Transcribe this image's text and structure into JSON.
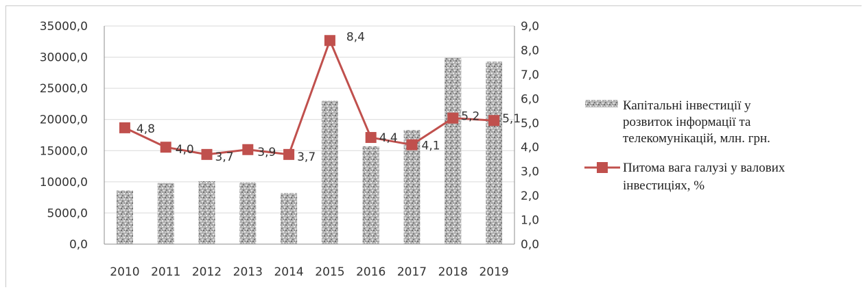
{
  "chart_data": {
    "type": "bar",
    "title": "",
    "xlabel": "",
    "ylabel": "",
    "categories": [
      "2010",
      "2011",
      "2012",
      "2013",
      "2014",
      "2015",
      "2016",
      "2017",
      "2018",
      "2019"
    ],
    "y_left": {
      "min": 0,
      "max": 35000,
      "step": 5000,
      "tick_labels": [
        "0,0",
        "5000,0",
        "10000,0",
        "15000,0",
        "20000,0",
        "25000,0",
        "30000,0",
        "35000,0"
      ]
    },
    "y_right": {
      "min": 0,
      "max": 9,
      "step": 1,
      "tick_labels": [
        "0,0",
        "1,0",
        "2,0",
        "3,0",
        "4,0",
        "5,0",
        "6,0",
        "7,0",
        "8,0",
        "9,0"
      ]
    },
    "series": [
      {
        "name": "Капітальні інвестиції у розвиток інформації та телекомунікацій, млн. грн.",
        "type": "bar",
        "axis": "left",
        "values": [
          8600,
          9800,
          10100,
          9900,
          8200,
          23000,
          15700,
          18300,
          29900,
          29300
        ],
        "color": "#a6a6a6"
      },
      {
        "name": "Питома вага галузі у валових інвестиціях, %",
        "type": "line",
        "axis": "right",
        "values": [
          4.8,
          4.0,
          3.7,
          3.9,
          3.7,
          8.4,
          4.4,
          4.1,
          5.2,
          5.1
        ],
        "data_labels": [
          "4,8",
          "4,0",
          "3,7",
          "3,9",
          "3,7",
          "8,4",
          "4,4",
          "4,1",
          "5,2",
          "5,1"
        ],
        "color": "#c0504d"
      }
    ],
    "legend": {
      "placement": "right",
      "bar_lines": [
        "Капітальні інвестиції у",
        "розвиток інформації та",
        "телекомунікацій, млн. грн."
      ],
      "line_lines": [
        "Питома вага галузі у валових",
        "інвестиціях, %"
      ]
    },
    "grid": true
  }
}
